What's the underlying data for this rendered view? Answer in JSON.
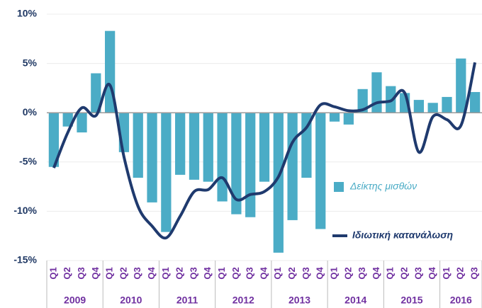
{
  "chart_data": {
    "type": "bar_line",
    "categories": [
      "Q1",
      "Q2",
      "Q3",
      "Q4",
      "Q1",
      "Q2",
      "Q3",
      "Q4",
      "Q1",
      "Q2",
      "Q3",
      "Q4",
      "Q1",
      "Q2",
      "Q3",
      "Q4",
      "Q1",
      "Q2",
      "Q3",
      "Q4",
      "Q1",
      "Q2",
      "Q3",
      "Q4",
      "Q1",
      "Q2",
      "Q3",
      "Q4",
      "Q1",
      "Q2",
      "Q3"
    ],
    "years": [
      "2009",
      "2010",
      "2011",
      "2012",
      "2013",
      "2014",
      "2015",
      "2016"
    ],
    "series": [
      {
        "name": "Δείκτης μισθών",
        "type": "bar",
        "color": "#4bacc6",
        "values": [
          -5.5,
          -1.4,
          -2.0,
          4.0,
          8.3,
          -4.0,
          -6.6,
          -9.1,
          -12.1,
          -6.3,
          -6.8,
          -7.0,
          -9.0,
          -10.3,
          -10.6,
          -7.0,
          -14.2,
          -10.9,
          -6.6,
          -11.8,
          -0.9,
          -1.2,
          2.4,
          4.1,
          2.7,
          2.0,
          1.3,
          1.0,
          1.6,
          5.5,
          2.1
        ]
      },
      {
        "name": "Ιδιωτική κατανάλωση",
        "type": "line",
        "color": "#1f3a6e",
        "values": [
          -5.6,
          -2.0,
          0.5,
          -0.3,
          2.8,
          -4.5,
          -9.5,
          -11.5,
          -12.7,
          -10.5,
          -8.0,
          -7.8,
          -6.6,
          -8.8,
          -8.3,
          -8.0,
          -6.5,
          -3.0,
          -1.5,
          0.8,
          0.6,
          0.2,
          0.3,
          1.0,
          1.2,
          2.0,
          -4.0,
          -0.4,
          -0.7,
          -1.3,
          5.1
        ]
      }
    ],
    "ylim": [
      -15,
      10
    ],
    "yticks": [
      {
        "value": -15,
        "label": "-15%"
      },
      {
        "value": -10,
        "label": "-10%"
      },
      {
        "value": -5,
        "label": "-5%"
      },
      {
        "value": 0,
        "label": "0%"
      },
      {
        "value": 5,
        "label": "5%"
      },
      {
        "value": 10,
        "label": "10%"
      }
    ],
    "grid": true
  }
}
